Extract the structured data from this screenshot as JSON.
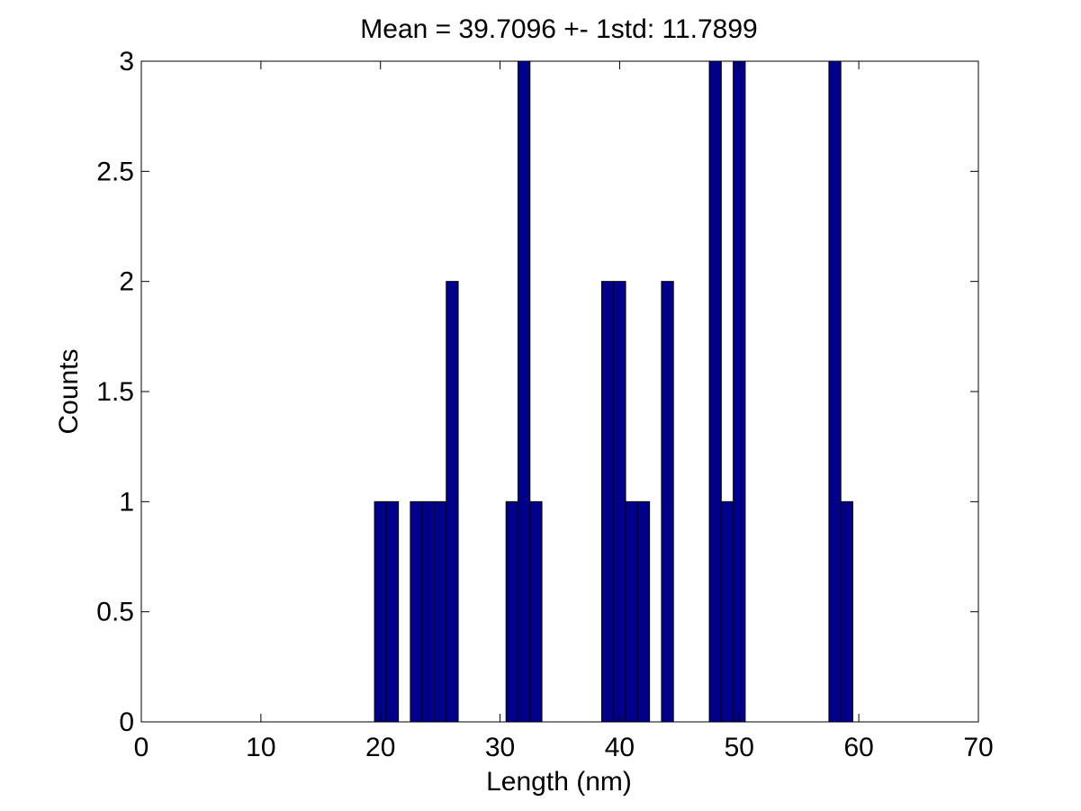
{
  "chart_data": {
    "type": "bar",
    "title": "Mean = 39.7096 +- 1std: 11.7899",
    "xlabel": "Length (nm)",
    "ylabel": "Counts",
    "xlim": [
      0,
      70
    ],
    "ylim": [
      0,
      3
    ],
    "xticks": [
      0,
      10,
      20,
      30,
      40,
      50,
      60,
      70
    ],
    "yticks": [
      0,
      0.5,
      1,
      1.5,
      2,
      2.5,
      3
    ],
    "xtick_labels": [
      "0",
      "10",
      "20",
      "30",
      "40",
      "50",
      "60",
      "70"
    ],
    "ytick_labels": [
      "0",
      "0.5",
      "1",
      "1.5",
      "2",
      "2.5",
      "3"
    ],
    "grid": false,
    "bar_color": "#00008b",
    "bar_edge_color": "#000000",
    "bin_width": 1,
    "bins": [
      {
        "x": 20,
        "count": 1
      },
      {
        "x": 21,
        "count": 1
      },
      {
        "x": 23,
        "count": 1
      },
      {
        "x": 24,
        "count": 1
      },
      {
        "x": 25,
        "count": 1
      },
      {
        "x": 26,
        "count": 2
      },
      {
        "x": 31,
        "count": 1
      },
      {
        "x": 32,
        "count": 3
      },
      {
        "x": 33,
        "count": 1
      },
      {
        "x": 39,
        "count": 2
      },
      {
        "x": 40,
        "count": 2
      },
      {
        "x": 41,
        "count": 1
      },
      {
        "x": 42,
        "count": 1
      },
      {
        "x": 44,
        "count": 2
      },
      {
        "x": 48,
        "count": 3
      },
      {
        "x": 49,
        "count": 1
      },
      {
        "x": 50,
        "count": 3
      },
      {
        "x": 58,
        "count": 3
      },
      {
        "x": 59,
        "count": 1
      }
    ]
  }
}
